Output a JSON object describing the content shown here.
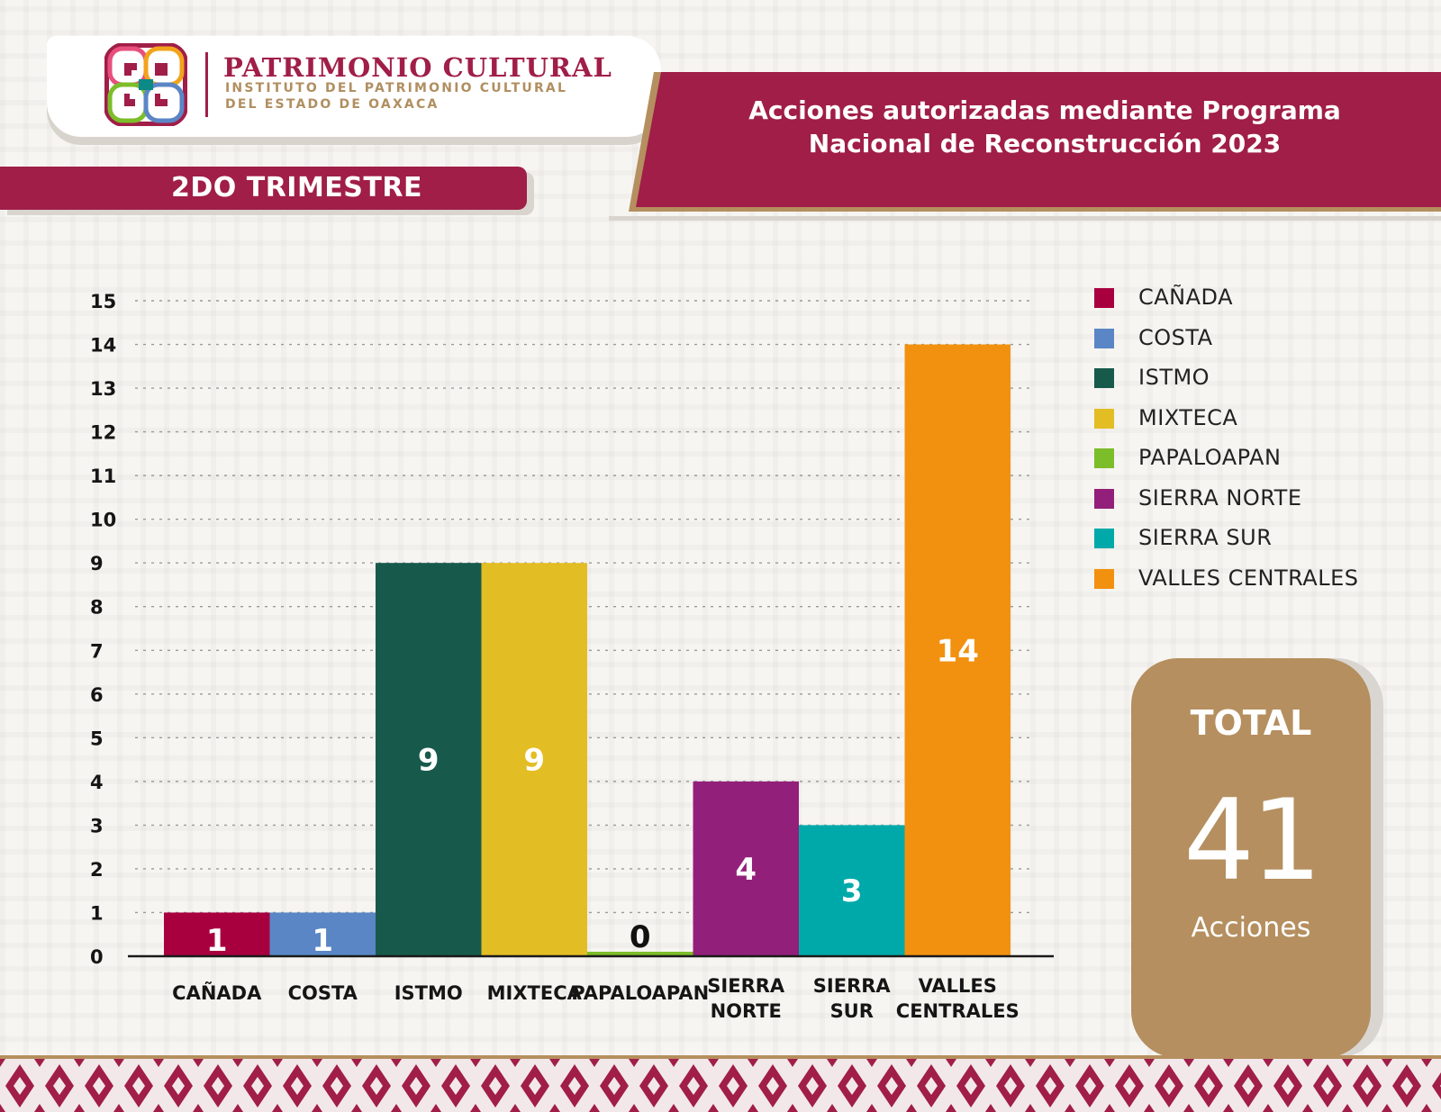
{
  "header": {
    "logo_title": "PATRIMONIO CULTURAL",
    "logo_subtitle_1": "INSTITUTO DEL PATRIMONIO CULTURAL",
    "logo_subtitle_2": "DEL ESTADO DE OAXACA",
    "title_line_1": "Acciones autorizadas mediante  Programa",
    "title_line_2": "Nacional de Reconstrucción 2023",
    "period": "2DO TRIMESTRE"
  },
  "colors": {
    "brand": "#a01e48",
    "gold": "#b58f5f",
    "shadow": "#d9d5ce"
  },
  "chart_data": {
    "type": "bar",
    "title": "",
    "xlabel": "",
    "ylabel": "",
    "ylim": [
      0,
      15
    ],
    "yticks": [
      0,
      1,
      2,
      3,
      4,
      5,
      6,
      7,
      8,
      9,
      10,
      11,
      12,
      13,
      14,
      15
    ],
    "grid": true,
    "legend_position": "right",
    "categories": [
      "CAÑADA",
      "COSTA",
      "ISTMO",
      "MIXTECA",
      "PAPALOAPAN",
      "SIERRA NORTE",
      "SIERRA SUR",
      "VALLES CENTRALES"
    ],
    "category_tick_lines": [
      [
        "CAÑADA"
      ],
      [
        "COSTA"
      ],
      [
        "ISTMO"
      ],
      [
        "MIXTECA"
      ],
      [
        "PAPALOAPAN"
      ],
      [
        "SIERRA",
        "NORTE"
      ],
      [
        "SIERRA",
        "SUR"
      ],
      [
        "VALLES",
        "CENTRALES"
      ]
    ],
    "values": [
      1,
      1,
      9,
      9,
      0,
      4,
      3,
      14
    ],
    "data_labels": [
      "1",
      "1",
      "9",
      "9",
      "0",
      "4",
      "3",
      "14"
    ],
    "colors": [
      "#a8003f",
      "#5b86c6",
      "#175a4c",
      "#e3bd24",
      "#7cbd2a",
      "#92207a",
      "#00a9a9",
      "#f2910f"
    ],
    "label_colors": [
      "#ffffff",
      "#ffffff",
      "#ffffff",
      "#ffffff",
      "#111111",
      "#ffffff",
      "#ffffff",
      "#ffffff"
    ]
  },
  "legend": {
    "items": [
      {
        "label": "CAÑADA",
        "color": "#a8003f"
      },
      {
        "label": "COSTA",
        "color": "#5b86c6"
      },
      {
        "label": "ISTMO",
        "color": "#175a4c"
      },
      {
        "label": "MIXTECA",
        "color": "#e3bd24"
      },
      {
        "label": "PAPALOAPAN",
        "color": "#7cbd2a"
      },
      {
        "label": "SIERRA NORTE",
        "color": "#92207a"
      },
      {
        "label": "SIERRA SUR",
        "color": "#00a9a9"
      },
      {
        "label": "VALLES CENTRALES",
        "color": "#f2910f"
      }
    ]
  },
  "total": {
    "label": "TOTAL",
    "value": "41",
    "unit": "Acciones"
  }
}
